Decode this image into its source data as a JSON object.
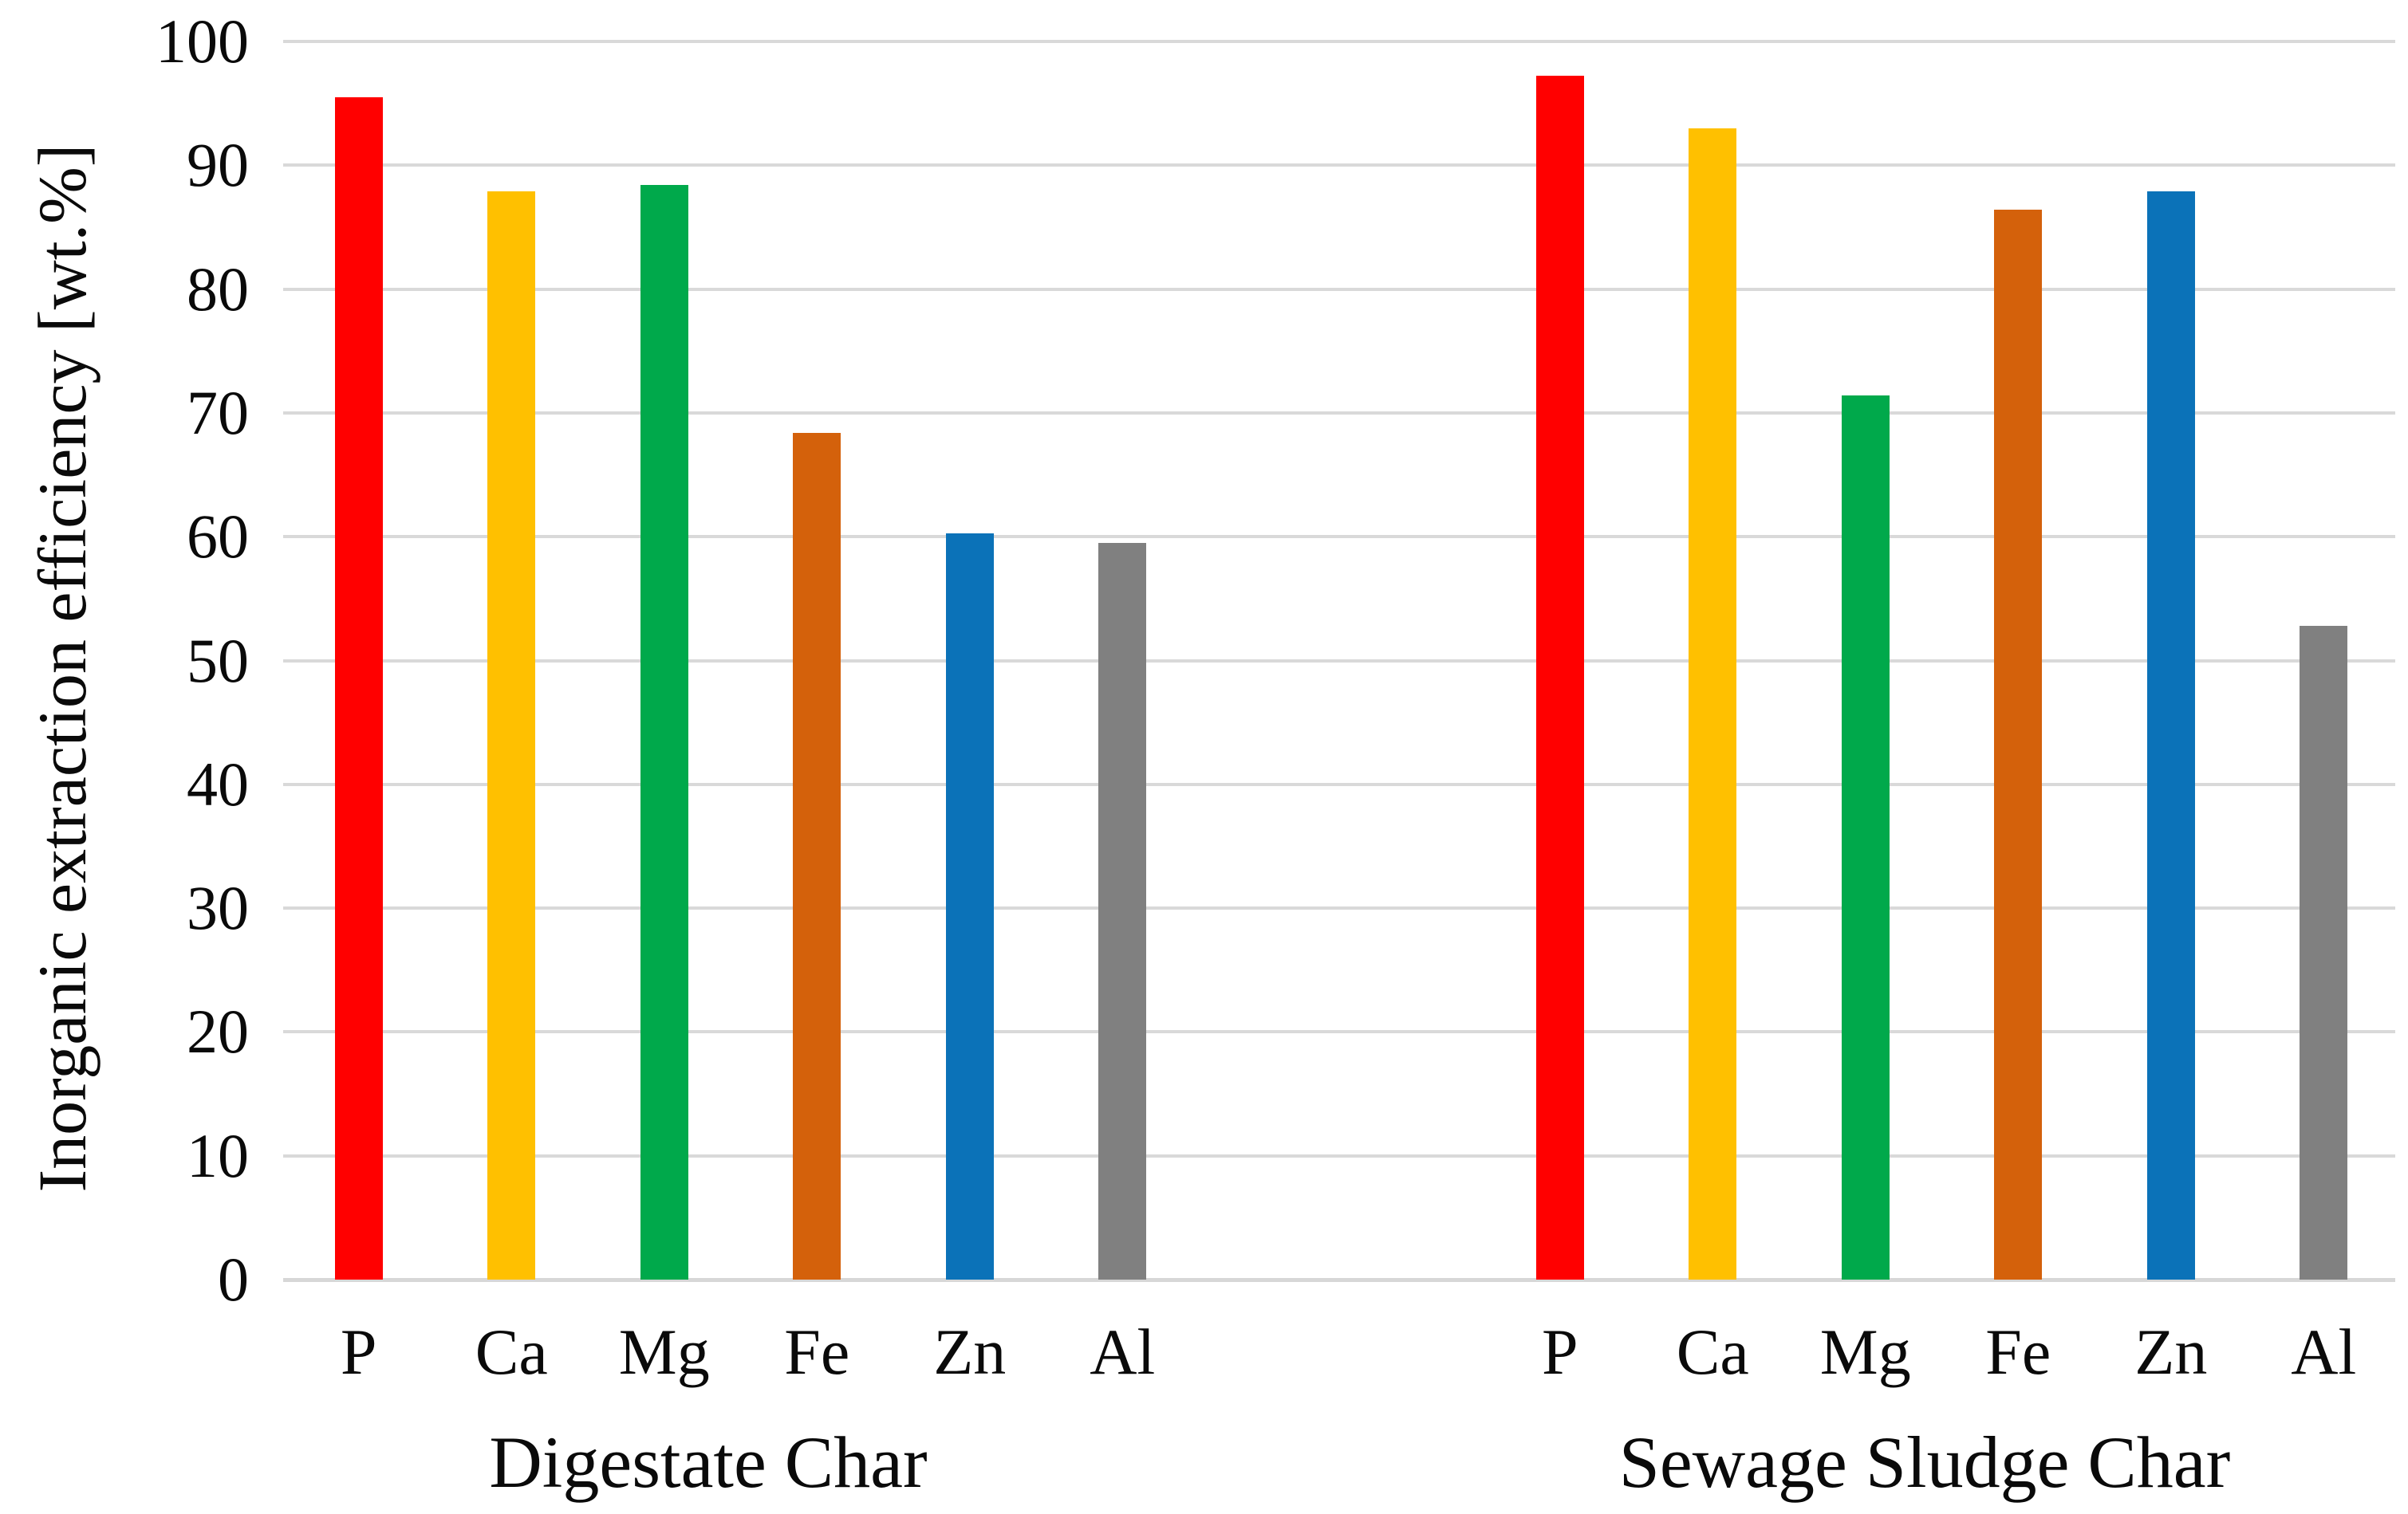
{
  "chart_data": {
    "type": "bar",
    "title": "",
    "ylabel": "Inorganic extraction efficiency [wt.%]",
    "xlabel": "",
    "ylim": [
      0,
      100
    ],
    "ytick_step": 10,
    "yticks": [
      0,
      10,
      20,
      30,
      40,
      50,
      60,
      70,
      80,
      90,
      100
    ],
    "grid": "horizontal",
    "gridline_color": "#d9d9d9",
    "legend": "none",
    "categories": [
      "P",
      "Ca",
      "Mg",
      "Fe",
      "Zn",
      "Al"
    ],
    "bar_colors": {
      "P": "#ff0000",
      "Ca": "#ffc000",
      "Mg": "#00a94b",
      "Fe": "#d4610b",
      "Zn": "#0b72b8",
      "Al": "#808080"
    },
    "groups": [
      {
        "label": "Digestate Char",
        "values": {
          "P": 95.5,
          "Ca": 87.9,
          "Mg": 88.4,
          "Fe": 68.4,
          "Zn": 60.3,
          "Al": 59.5
        }
      },
      {
        "label": "Sewage Sludge Char",
        "values": {
          "P": 97.2,
          "Ca": 93.0,
          "Mg": 71.4,
          "Fe": 86.4,
          "Zn": 87.9,
          "Al": 52.8
        }
      }
    ]
  }
}
